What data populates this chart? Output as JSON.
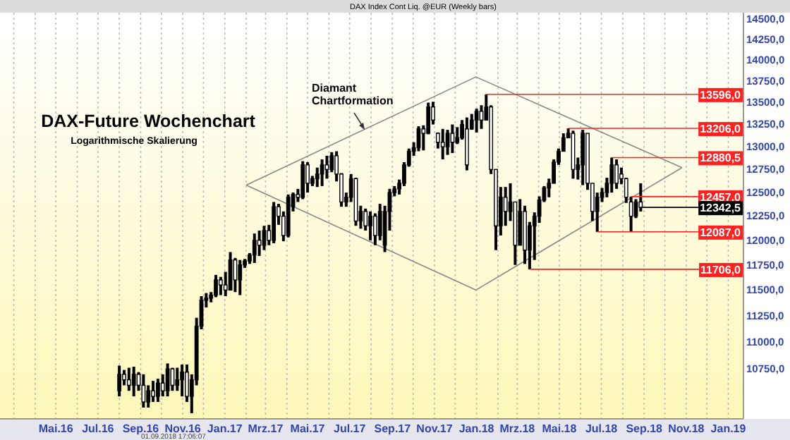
{
  "chart_data": {
    "type": "candlestick",
    "title": "DAX-Future Wochenchart",
    "subtitle": "Logarithmische Skalierung",
    "annotations": [
      "Diamant Chartformation",
      "DAX Index Cont Liq. @EUR (Weekly bars)",
      "01.09.2018 17:06:07"
    ],
    "x": [
      "2016-08-01",
      "2016-08-08",
      "2016-08-15",
      "2016-08-22",
      "2016-08-29",
      "2016-09-05",
      "2016-09-12",
      "2016-09-19",
      "2016-09-26",
      "2016-10-03",
      "2016-10-10",
      "2016-10-17",
      "2016-10-24",
      "2016-10-31",
      "2016-11-07",
      "2016-11-14",
      "2016-11-21",
      "2016-11-28",
      "2016-12-05",
      "2016-12-12",
      "2016-12-19",
      "2016-12-26",
      "2017-01-02",
      "2017-01-09",
      "2017-01-16",
      "2017-01-23",
      "2017-01-30",
      "2017-02-06",
      "2017-02-13",
      "2017-02-20",
      "2017-02-27",
      "2017-03-06",
      "2017-03-13",
      "2017-03-20",
      "2017-03-27",
      "2017-04-03",
      "2017-04-10",
      "2017-04-17",
      "2017-04-24",
      "2017-05-01",
      "2017-05-08",
      "2017-05-15",
      "2017-05-22",
      "2017-05-29",
      "2017-06-05",
      "2017-06-12",
      "2017-06-19",
      "2017-06-26",
      "2017-07-03",
      "2017-07-10",
      "2017-07-17",
      "2017-07-24",
      "2017-07-31",
      "2017-08-07",
      "2017-08-14",
      "2017-08-21",
      "2017-08-28",
      "2017-09-04",
      "2017-09-11",
      "2017-09-18",
      "2017-09-25",
      "2017-10-02",
      "2017-10-09",
      "2017-10-16",
      "2017-10-23",
      "2017-10-30",
      "2017-11-06",
      "2017-11-13",
      "2017-11-20",
      "2017-11-27",
      "2017-12-04",
      "2017-12-11",
      "2017-12-18",
      "2017-12-25",
      "2018-01-01",
      "2018-01-08",
      "2018-01-15",
      "2018-01-22",
      "2018-01-29",
      "2018-02-05",
      "2018-02-12",
      "2018-02-19",
      "2018-02-26",
      "2018-03-05",
      "2018-03-12",
      "2018-03-19",
      "2018-03-26",
      "2018-04-02",
      "2018-04-09",
      "2018-04-16",
      "2018-04-23",
      "2018-04-30",
      "2018-05-07",
      "2018-05-14",
      "2018-05-21",
      "2018-05-28",
      "2018-06-04",
      "2018-06-11",
      "2018-06-18",
      "2018-06-25",
      "2018-07-02",
      "2018-07-09",
      "2018-07-16",
      "2018-07-23",
      "2018-07-30",
      "2018-08-06",
      "2018-08-13",
      "2018-08-20",
      "2018-08-27"
    ],
    "ohlc": [
      [
        10550,
        10780,
        10500,
        10700
      ],
      [
        10700,
        10740,
        10600,
        10650
      ],
      [
        10650,
        10760,
        10550,
        10600
      ],
      [
        10600,
        10770,
        10500,
        10700
      ],
      [
        10700,
        10720,
        10550,
        10600
      ],
      [
        10600,
        10700,
        10400,
        10450
      ],
      [
        10450,
        10600,
        10400,
        10550
      ],
      [
        10550,
        10640,
        10450,
        10500
      ],
      [
        10500,
        10660,
        10450,
        10620
      ],
      [
        10620,
        10700,
        10500,
        10550
      ],
      [
        10550,
        10800,
        10500,
        10750
      ],
      [
        10750,
        10760,
        10550,
        10600
      ],
      [
        10600,
        10760,
        10550,
        10650
      ],
      [
        10650,
        10790,
        10500,
        10720
      ],
      [
        10720,
        10790,
        10450,
        10500
      ],
      [
        10500,
        10700,
        10350,
        10650
      ],
      [
        10650,
        11230,
        10600,
        11150
      ],
      [
        11150,
        11440,
        11120,
        11400
      ],
      [
        11400,
        11470,
        11330,
        11420
      ],
      [
        11420,
        11480,
        11380,
        11450
      ],
      [
        11450,
        11650,
        11430,
        11600
      ],
      [
        11600,
        11630,
        11450,
        11550
      ],
      [
        11550,
        11680,
        11440,
        11500
      ],
      [
        11500,
        11880,
        11500,
        11800
      ],
      [
        11800,
        11820,
        11480,
        11600
      ],
      [
        11600,
        11800,
        11450,
        11750
      ],
      [
        11750,
        11810,
        11720,
        11790
      ],
      [
        11790,
        11870,
        11760,
        11850
      ],
      [
        11850,
        12070,
        11770,
        12000
      ],
      [
        12000,
        12100,
        11840,
        11950
      ],
      [
        11950,
        12150,
        11900,
        12100
      ],
      [
        12100,
        12160,
        11950,
        12000
      ],
      [
        12000,
        12400,
        11970,
        12350
      ],
      [
        12350,
        12380,
        12160,
        12250
      ],
      [
        12250,
        12300,
        11990,
        12050
      ],
      [
        12050,
        12480,
        12030,
        12450
      ],
      [
        12350,
        12500,
        12300,
        12480
      ],
      [
        12480,
        12540,
        12400,
        12450
      ],
      [
        12450,
        12840,
        12430,
        12800
      ],
      [
        12800,
        12830,
        12500,
        12600
      ],
      [
        12600,
        12680,
        12570,
        12650
      ],
      [
        12650,
        12770,
        12560,
        12700
      ],
      [
        12700,
        12860,
        12570,
        12800
      ],
      [
        12800,
        12900,
        12650,
        12750
      ],
      [
        12750,
        12940,
        12720,
        12900
      ],
      [
        12900,
        12950,
        12620,
        12700
      ],
      [
        12700,
        12710,
        12350,
        12400
      ],
      [
        12400,
        12500,
        12350,
        12450
      ],
      [
        12450,
        12700,
        12400,
        12650
      ],
      [
        12650,
        12660,
        12150,
        12200
      ],
      [
        12200,
        12360,
        12120,
        12300
      ],
      [
        12300,
        12330,
        12100,
        12150
      ],
      [
        12150,
        12300,
        12000,
        12250
      ],
      [
        12250,
        12280,
        11950,
        12050
      ],
      [
        12050,
        12380,
        12000,
        12300
      ],
      [
        11950,
        12360,
        11880,
        12300
      ],
      [
        12300,
        12540,
        12100,
        12500
      ],
      [
        12500,
        12570,
        12460,
        12540
      ],
      [
        12540,
        12640,
        12480,
        12600
      ],
      [
        12600,
        12830,
        12570,
        12800
      ],
      [
        12800,
        12980,
        12780,
        12950
      ],
      [
        12950,
        13050,
        12900,
        12990
      ],
      [
        12990,
        13230,
        12950,
        13200
      ],
      [
        13200,
        13240,
        12960,
        13150
      ],
      [
        13150,
        13500,
        13140,
        13450
      ],
      [
        13450,
        13510,
        13250,
        13300
      ],
      [
        13150,
        13160,
        12980,
        13050
      ],
      [
        13050,
        13200,
        12860,
        13000
      ],
      [
        13000,
        13190,
        12910,
        13150
      ],
      [
        13150,
        13250,
        12930,
        13050
      ],
      [
        13050,
        13220,
        13030,
        13100
      ],
      [
        13100,
        13300,
        13080,
        13250
      ],
      [
        13200,
        13330,
        12740,
        12800
      ],
      [
        13200,
        13370,
        13190,
        13300
      ],
      [
        13300,
        13430,
        13160,
        13400
      ],
      [
        13400,
        13470,
        13200,
        13300
      ],
      [
        13300,
        13596,
        13300,
        13450
      ],
      [
        13450,
        13470,
        12700,
        12750
      ],
      [
        12750,
        12750,
        11900,
        12150
      ],
      [
        12150,
        12560,
        12050,
        12450
      ],
      [
        12450,
        12560,
        12150,
        12300
      ],
      [
        12300,
        12600,
        12200,
        12400
      ],
      [
        12400,
        12400,
        11750,
        11950
      ],
      [
        11950,
        12430,
        11950,
        12300
      ],
      [
        12300,
        12360,
        11760,
        11900
      ],
      [
        11900,
        12190,
        11706,
        12150
      ],
      [
        12150,
        12290,
        11800,
        12250
      ],
      [
        12250,
        12460,
        12180,
        12420
      ],
      [
        12420,
        12570,
        12400,
        12550
      ],
      [
        12550,
        12650,
        12450,
        12600
      ],
      [
        12600,
        12860,
        12600,
        12830
      ],
      [
        12830,
        12980,
        12800,
        12950
      ],
      [
        12950,
        13150,
        12950,
        13100
      ],
      [
        13100,
        13206,
        13100,
        13150
      ],
      [
        13150,
        13180,
        12650,
        12750
      ],
      [
        12750,
        12880,
        12640,
        12800
      ],
      [
        12800,
        13190,
        12580,
        13150
      ],
      [
        13150,
        13150,
        12530,
        12600
      ],
      [
        12600,
        12600,
        12200,
        12300
      ],
      [
        12300,
        12500,
        12087,
        12450
      ],
      [
        12450,
        12550,
        12400,
        12500
      ],
      [
        12500,
        12660,
        12450,
        12600
      ],
      [
        12600,
        12880.5,
        12500,
        12800
      ],
      [
        12800,
        12860,
        12540,
        12600
      ],
      [
        12700,
        12770,
        12590,
        12650
      ],
      [
        12650,
        12660,
        12390,
        12450
      ],
      [
        12400,
        12457,
        12087,
        12250
      ],
      [
        12250,
        12430,
        12230,
        12400
      ],
      [
        12400,
        12600,
        12300,
        12342.5
      ]
    ],
    "color": "#000000",
    "xlim": [
      "2016-02-10",
      "2019-01-23"
    ],
    "xticks": [
      {
        "value": "2016-03-01",
        "label": null
      },
      {
        "value": "2016-04-01",
        "label": null
      },
      {
        "value": "2016-05-01",
        "label": "Mai.16"
      },
      {
        "value": "2016-06-01",
        "label": null
      },
      {
        "value": "2016-07-01",
        "label": "Jul.16"
      },
      {
        "value": "2016-08-01",
        "label": null
      },
      {
        "value": "2016-09-01",
        "label": "Sep.16"
      },
      {
        "value": "2016-10-01",
        "label": null
      },
      {
        "value": "2016-11-01",
        "label": "Nov.16"
      },
      {
        "value": "2016-12-01",
        "label": null
      },
      {
        "value": "2017-01-01",
        "label": "Jan.17"
      },
      {
        "value": "2017-02-01",
        "label": null
      },
      {
        "value": "2017-03-01",
        "label": "Mrz.17"
      },
      {
        "value": "2017-04-01",
        "label": null
      },
      {
        "value": "2017-05-01",
        "label": "Mai.17"
      },
      {
        "value": "2017-06-01",
        "label": null
      },
      {
        "value": "2017-07-01",
        "label": "Jul.17"
      },
      {
        "value": "2017-08-01",
        "label": null
      },
      {
        "value": "2017-09-01",
        "label": "Sep.17"
      },
      {
        "value": "2017-10-01",
        "label": null
      },
      {
        "value": "2017-11-01",
        "label": "Nov.17"
      },
      {
        "value": "2017-12-01",
        "label": null
      },
      {
        "value": "2018-01-01",
        "label": "Jan.18"
      },
      {
        "value": "2018-02-01",
        "label": null
      },
      {
        "value": "2018-03-01",
        "label": "Mrz.18"
      },
      {
        "value": "2018-04-01",
        "label": null
      },
      {
        "value": "2018-05-01",
        "label": "Mai.18"
      },
      {
        "value": "2018-06-01",
        "label": null
      },
      {
        "value": "2018-07-01",
        "label": "Jul.18"
      },
      {
        "value": "2018-08-01",
        "label": null
      },
      {
        "value": "2018-09-01",
        "label": "Sep.18"
      },
      {
        "value": "2018-10-01",
        "label": null
      },
      {
        "value": "2018-11-01",
        "label": "Nov.18"
      },
      {
        "value": "2018-12-01",
        "label": null
      },
      {
        "value": "2019-01-01",
        "label": "Jan.19"
      }
    ],
    "ylim": [
      10300,
      14580
    ],
    "yticks": [
      {
        "value": 10750,
        "label": "10750,0"
      },
      {
        "value": 11000,
        "label": "11000,0"
      },
      {
        "value": 11250,
        "label": "11250,0"
      },
      {
        "value": 11500,
        "label": "11500,0"
      },
      {
        "value": 11750,
        "label": "11750,0"
      },
      {
        "value": 12000,
        "label": "12000,0"
      },
      {
        "value": 12250,
        "label": "12250,0"
      },
      {
        "value": 12500,
        "label": "12500,0"
      },
      {
        "value": 12750,
        "label": "12750,0"
      },
      {
        "value": 13000,
        "label": "13000,0"
      },
      {
        "value": 13250,
        "label": "13250,0"
      },
      {
        "value": 13500,
        "label": "13500,0"
      },
      {
        "value": 13750,
        "label": "13750,0"
      },
      {
        "value": 14000,
        "label": "14000,0"
      },
      {
        "value": 14250,
        "label": "14250,0"
      },
      {
        "value": 14500,
        "label": "14500,0"
      }
    ],
    "log": true,
    "grid": "x",
    "series": [
      {
        "type": "line",
        "color": "#888888",
        "x": [
          "2017-02-01",
          "2017-12-31",
          "2018-10-26"
        ],
        "values": [
          12580,
          13800,
          12770
        ]
      },
      {
        "type": "line",
        "color": "#888888",
        "x": [
          "2017-02-01",
          "2017-12-31",
          "2018-10-26"
        ],
        "values": [
          12580,
          11500,
          12770
        ]
      }
    ],
    "ref_lines": [
      {
        "axis": "y",
        "value": 13596,
        "label": "13596,0",
        "color": "#ff2020"
      },
      {
        "axis": "y",
        "value": 13206,
        "label": "13206,0",
        "color": "#ff2020"
      },
      {
        "axis": "y",
        "value": 12880.5,
        "label": "12880,5",
        "color": "#ff2020"
      },
      {
        "axis": "y",
        "value": 12457,
        "label": "12457,0",
        "color": "#ff2020"
      },
      {
        "axis": "y",
        "value": 12087,
        "label": "12087,0",
        "color": "#ff2020"
      },
      {
        "axis": "y",
        "value": 11706,
        "label": "11706,0",
        "color": "#ff2020"
      },
      {
        "axis": "y",
        "value": 12342.5,
        "label": "12342,5",
        "color": "#000000"
      }
    ]
  }
}
